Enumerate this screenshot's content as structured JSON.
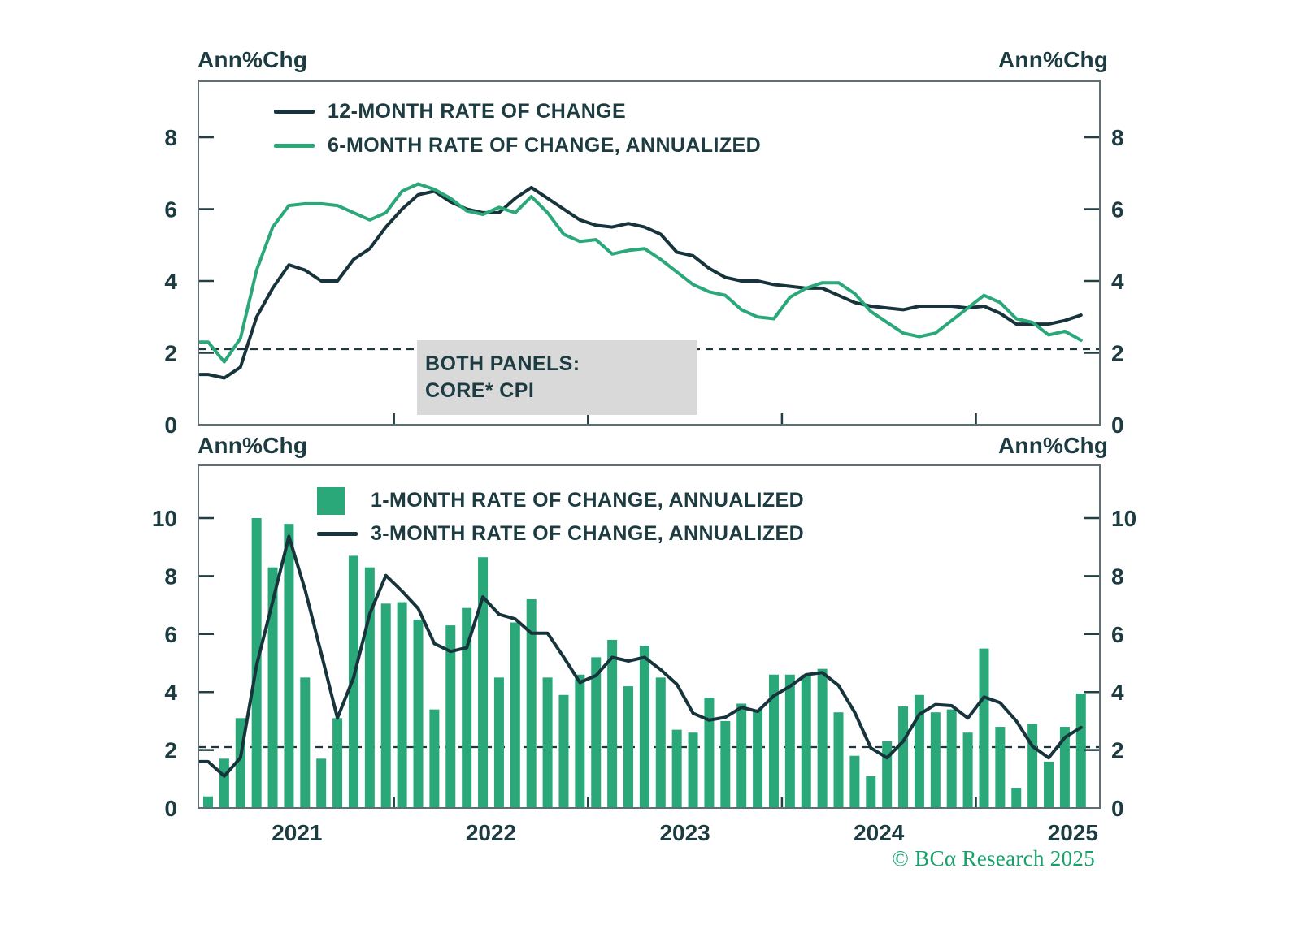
{
  "axis_unit_label": "Ann%Chg",
  "annotation": {
    "line1": "BOTH PANELS:",
    "line2": "CORE* CPI"
  },
  "copyright": "© BCα Research 2025",
  "colors": {
    "green": "#2aa87a",
    "dark": "#17343c",
    "text": "#1d3c41",
    "border": "#5d6f72",
    "note_bg": "#d9d9d9",
    "copyright_green": "#16a06a"
  },
  "chart_data": [
    {
      "type": "line",
      "panel": "top",
      "x_start": "2021-01",
      "x_end": "2025-07",
      "x_frequency": "monthly",
      "x_tick_labels": [
        "2021",
        "2022",
        "2023",
        "2024",
        "2025"
      ],
      "ylabel": "Ann%Chg",
      "yticks": [
        0,
        2,
        4,
        6,
        8
      ],
      "ylim": [
        0,
        9.55
      ],
      "grid": false,
      "dashed_reference_value": 2.1,
      "legend_position": "top-left-inside",
      "series": [
        {
          "name": "12-MONTH RATE OF CHANGE",
          "color": "#17343c",
          "values": [
            1.4,
            1.3,
            1.6,
            3.0,
            3.8,
            4.45,
            4.3,
            4.0,
            4.0,
            4.6,
            4.9,
            5.5,
            6.0,
            6.4,
            6.5,
            6.2,
            6.0,
            5.9,
            5.9,
            6.3,
            6.6,
            6.3,
            6.0,
            5.7,
            5.55,
            5.5,
            5.6,
            5.5,
            5.3,
            4.8,
            4.7,
            4.35,
            4.1,
            4.0,
            4.0,
            3.9,
            3.85,
            3.8,
            3.8,
            3.6,
            3.4,
            3.3,
            3.25,
            3.2,
            3.3,
            3.3,
            3.3,
            3.25,
            3.3,
            3.1,
            2.8,
            2.8,
            2.8,
            2.9,
            3.05
          ]
        },
        {
          "name": "6-MONTH RATE OF CHANGE, ANNUALIZED",
          "color": "#2aa87a",
          "values": [
            2.3,
            1.75,
            2.4,
            4.3,
            5.5,
            6.1,
            6.15,
            6.15,
            6.1,
            5.9,
            5.7,
            5.9,
            6.5,
            6.7,
            6.55,
            6.3,
            5.95,
            5.85,
            6.05,
            5.9,
            6.35,
            5.9,
            5.3,
            5.1,
            5.15,
            4.75,
            4.85,
            4.9,
            4.6,
            4.25,
            3.9,
            3.7,
            3.6,
            3.2,
            3.0,
            2.95,
            3.55,
            3.8,
            3.95,
            3.95,
            3.65,
            3.15,
            2.85,
            2.55,
            2.45,
            2.55,
            2.9,
            3.25,
            3.6,
            3.4,
            2.95,
            2.85,
            2.5,
            2.6,
            2.35
          ]
        }
      ]
    },
    {
      "type": "bar",
      "panel": "bottom",
      "x_start": "2021-01",
      "x_end": "2025-07",
      "x_frequency": "monthly",
      "x_tick_labels": [
        "2021",
        "2022",
        "2023",
        "2024",
        "2025"
      ],
      "ylabel": "Ann%Chg",
      "yticks": [
        0,
        2,
        4,
        6,
        8,
        10
      ],
      "ylim": [
        0,
        11.8
      ],
      "grid": false,
      "dashed_reference_value": 2.1,
      "legend_position": "top-left-inside",
      "series": [
        {
          "name": "1-MONTH RATE OF CHANGE, ANNUALIZED",
          "type": "bar",
          "color": "#2aa87a",
          "values": [
            0.4,
            1.7,
            3.1,
            10.0,
            8.3,
            9.8,
            4.5,
            1.7,
            3.1,
            8.7,
            8.3,
            7.05,
            7.1,
            6.5,
            3.4,
            6.3,
            6.9,
            8.65,
            4.5,
            6.4,
            7.2,
            4.5,
            3.9,
            4.6,
            5.2,
            5.8,
            4.2,
            5.6,
            4.5,
            2.7,
            2.6,
            3.8,
            3.0,
            3.6,
            3.4,
            4.6,
            4.6,
            4.6,
            4.8,
            3.3,
            1.8,
            1.1,
            2.3,
            3.5,
            3.9,
            3.3,
            3.4,
            2.6,
            5.5,
            2.8,
            0.7,
            2.9,
            1.6,
            2.8,
            3.95
          ]
        },
        {
          "name": "3-MONTH RATE OF CHANGE, ANNUALIZED",
          "type": "line",
          "color": "#17343c",
          "values": [
            1.6,
            1.1,
            1.73,
            4.93,
            7.13,
            9.37,
            7.53,
            5.33,
            3.1,
            4.5,
            6.7,
            8.02,
            7.48,
            6.88,
            5.67,
            5.4,
            5.53,
            7.28,
            6.68,
            6.52,
            6.03,
            6.03,
            5.2,
            4.33,
            4.57,
            5.2,
            5.07,
            5.2,
            4.77,
            4.27,
            3.27,
            3.03,
            3.13,
            3.47,
            3.33,
            3.87,
            4.2,
            4.6,
            4.67,
            4.23,
            3.3,
            2.07,
            1.73,
            2.3,
            3.23,
            3.57,
            3.53,
            3.1,
            3.83,
            3.63,
            3.0,
            2.13,
            1.73,
            2.43,
            2.78
          ]
        }
      ]
    }
  ]
}
